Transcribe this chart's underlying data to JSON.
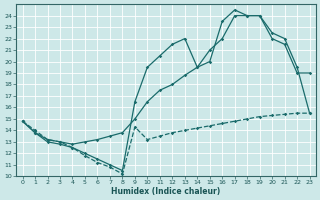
{
  "xlabel": "Humidex (Indice chaleur)",
  "xlim": [
    -0.5,
    23.5
  ],
  "ylim": [
    10,
    25
  ],
  "yticks": [
    10,
    11,
    12,
    13,
    14,
    15,
    16,
    17,
    18,
    19,
    20,
    21,
    22,
    23,
    24
  ],
  "xticks": [
    0,
    1,
    2,
    3,
    4,
    5,
    6,
    7,
    8,
    9,
    10,
    11,
    12,
    13,
    14,
    15,
    16,
    17,
    18,
    19,
    20,
    21,
    22,
    23
  ],
  "bg_color": "#cde8e8",
  "grid_color": "#ffffff",
  "line_color": "#1a6b6b",
  "line1_x": [
    0,
    1,
    2,
    3,
    4,
    5,
    6,
    7,
    8,
    9,
    10,
    11,
    12,
    13,
    14,
    15,
    16,
    17,
    18,
    19,
    20,
    21,
    22,
    23
  ],
  "line1_y": [
    14.8,
    14.0,
    13.2,
    13.0,
    12.5,
    11.8,
    11.2,
    10.8,
    10.2,
    14.3,
    13.2,
    13.5,
    13.8,
    14.0,
    14.2,
    14.4,
    14.6,
    14.8,
    15.0,
    15.2,
    15.3,
    15.4,
    15.5,
    15.5
  ],
  "line2_x": [
    0,
    1,
    2,
    3,
    4,
    5,
    6,
    7,
    8,
    9,
    10,
    11,
    12,
    13,
    14,
    15,
    16,
    17,
    18,
    19,
    20,
    21,
    22,
    23
  ],
  "line2_y": [
    14.8,
    13.8,
    13.2,
    13.0,
    12.8,
    13.0,
    13.2,
    13.5,
    13.8,
    15.0,
    16.5,
    17.5,
    18.0,
    18.8,
    19.5,
    21.0,
    22.0,
    24.0,
    24.0,
    24.0,
    22.0,
    21.5,
    19.0,
    19.0
  ],
  "line3_x": [
    0,
    1,
    2,
    3,
    4,
    5,
    6,
    7,
    8,
    9,
    10,
    11,
    12,
    13,
    14,
    15,
    16,
    17,
    18,
    19,
    20,
    21,
    22,
    23
  ],
  "line3_y": [
    14.8,
    13.8,
    13.0,
    12.8,
    12.5,
    12.0,
    11.5,
    11.0,
    10.5,
    16.5,
    19.5,
    20.5,
    21.5,
    22.0,
    19.5,
    20.0,
    23.5,
    24.5,
    24.0,
    24.0,
    22.5,
    22.0,
    19.5,
    15.5
  ]
}
